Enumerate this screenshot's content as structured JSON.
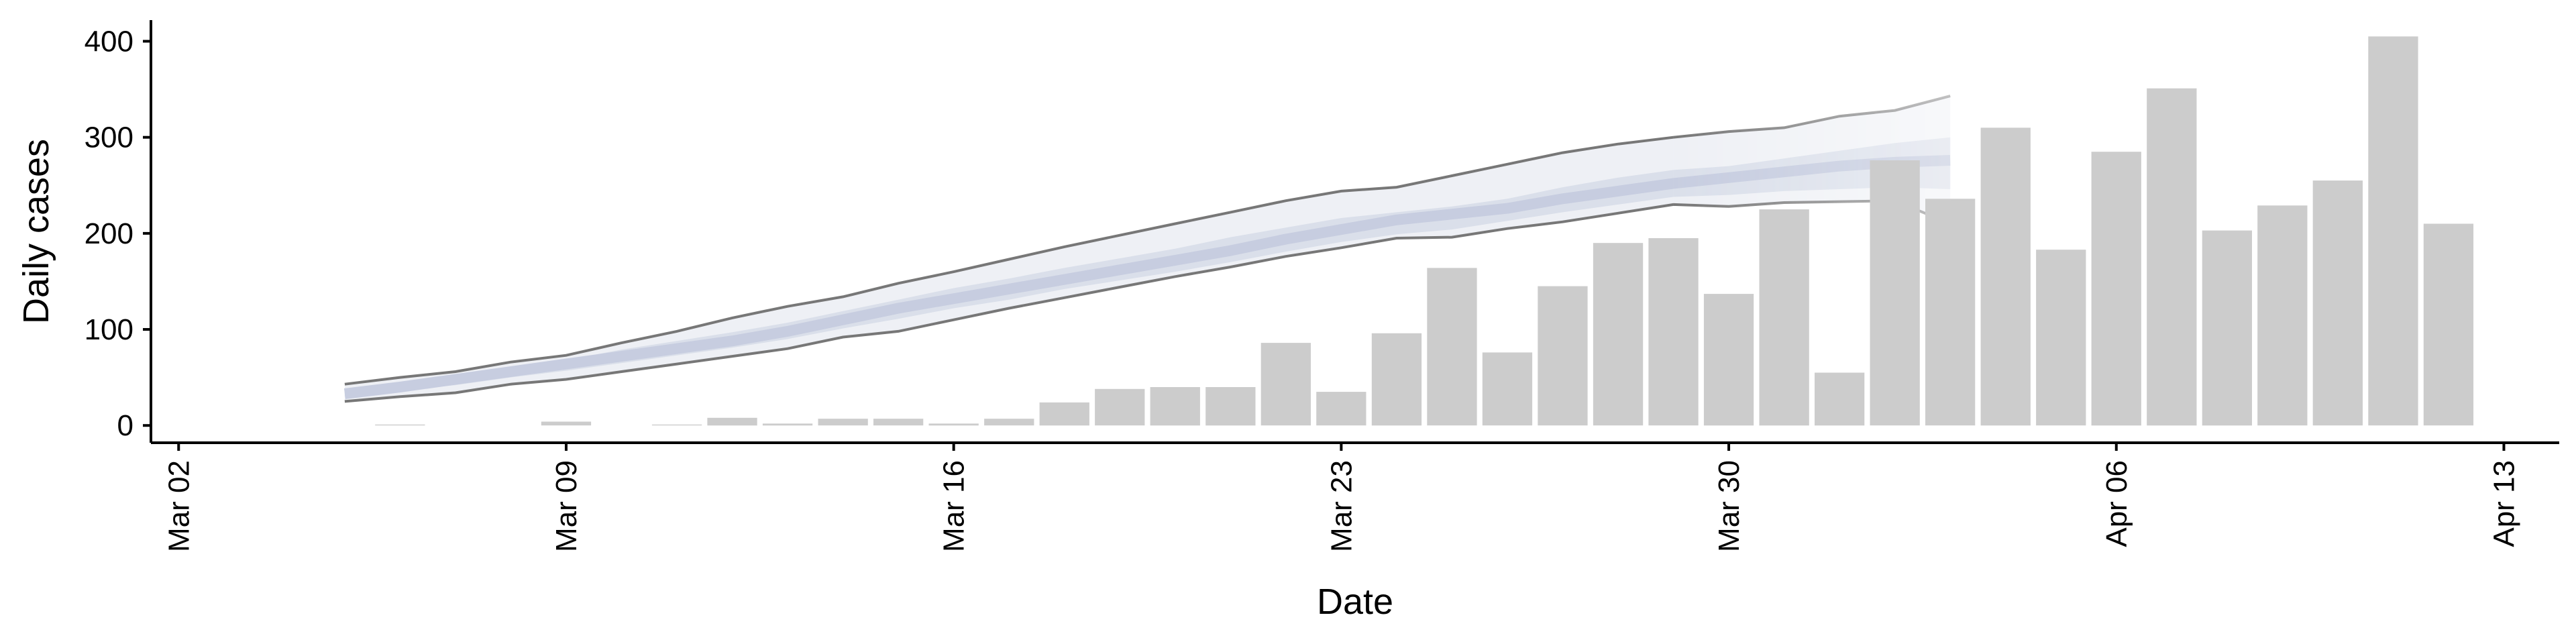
{
  "chart_data": {
    "type": "bar",
    "xlabel": "Date",
    "ylabel": "Daily cases",
    "x_ticks": [
      "Mar 02",
      "Mar 09",
      "Mar 16",
      "Mar 23",
      "Mar 30",
      "Apr 06",
      "Apr 13"
    ],
    "y_ticks": [
      "0",
      "100",
      "200",
      "300",
      "400"
    ],
    "xlim": [
      "2020-03-01.5",
      "2020-04-14"
    ],
    "ylim": [
      -18,
      422
    ],
    "grid": false,
    "colors": {
      "bars": "#cccccc",
      "outer_band": "#eef0f5",
      "inner_band": "#dadfea",
      "median": "#c7cde0",
      "outer_line": "#777777"
    },
    "bars": {
      "dates": [
        "2020-03-05",
        "2020-03-06",
        "2020-03-07",
        "2020-03-08",
        "2020-03-09",
        "2020-03-10",
        "2020-03-11",
        "2020-03-12",
        "2020-03-13",
        "2020-03-14",
        "2020-03-15",
        "2020-03-16",
        "2020-03-17",
        "2020-03-18",
        "2020-03-19",
        "2020-03-20",
        "2020-03-21",
        "2020-03-22",
        "2020-03-23",
        "2020-03-24",
        "2020-03-25",
        "2020-03-26",
        "2020-03-27",
        "2020-03-28",
        "2020-03-29",
        "2020-03-30",
        "2020-03-31",
        "2020-04-01",
        "2020-04-02",
        "2020-04-03",
        "2020-04-04",
        "2020-04-05",
        "2020-04-06",
        "2020-04-07",
        "2020-04-08",
        "2020-04-09",
        "2020-04-10",
        "2020-04-11",
        "2020-04-12"
      ],
      "values": [
        0,
        1,
        0,
        0,
        4,
        0,
        1,
        8,
        2,
        7,
        7,
        2,
        7,
        24,
        38,
        40,
        40,
        86,
        35,
        96,
        164,
        76,
        145,
        190,
        195,
        137,
        225,
        55,
        276,
        236,
        310,
        183,
        285,
        351,
        203,
        229,
        255,
        405,
        210
      ]
    },
    "forecast": {
      "dates": [
        "2020-03-05",
        "2020-03-06",
        "2020-03-07",
        "2020-03-08",
        "2020-03-09",
        "2020-03-10",
        "2020-03-11",
        "2020-03-12",
        "2020-03-13",
        "2020-03-14",
        "2020-03-15",
        "2020-03-16",
        "2020-03-17",
        "2020-03-18",
        "2020-03-19",
        "2020-03-20",
        "2020-03-21",
        "2020-03-22",
        "2020-03-23",
        "2020-03-24",
        "2020-03-25",
        "2020-03-26",
        "2020-03-27",
        "2020-03-28",
        "2020-03-29",
        "2020-03-30",
        "2020-03-31",
        "2020-04-01",
        "2020-04-02",
        "2020-04-03"
      ],
      "median": [
        33,
        40,
        48,
        56,
        64,
        72,
        80,
        88,
        98,
        110,
        122,
        132,
        142,
        152,
        162,
        172,
        182,
        194,
        204,
        214,
        220,
        226,
        236,
        244,
        252,
        258,
        264,
        270,
        274,
        276
      ],
      "outer_lower": [
        25,
        30,
        34,
        43,
        48,
        56,
        64,
        72,
        80,
        92,
        98,
        110,
        122,
        133,
        144,
        155,
        165,
        176,
        185,
        195,
        196,
        205,
        212,
        221,
        230,
        228,
        232,
        233,
        234,
        210
      ],
      "outer_upper": [
        43,
        50,
        56,
        66,
        73,
        86,
        98,
        112,
        124,
        134,
        148,
        160,
        173,
        186,
        198,
        210,
        222,
        234,
        244,
        248,
        260,
        272,
        284,
        293,
        300,
        306,
        310,
        322,
        328,
        343
      ],
      "inner_lower": [
        30,
        36,
        42,
        50,
        57,
        65,
        73,
        81,
        90,
        101,
        111,
        122,
        131,
        142,
        151,
        160,
        170,
        181,
        191,
        199,
        204,
        213,
        222,
        230,
        238,
        240,
        244,
        246,
        248,
        246
      ],
      "inner_upper": [
        36,
        43,
        51,
        61,
        68,
        79,
        88,
        97,
        107,
        119,
        131,
        143,
        153,
        164,
        174,
        184,
        196,
        206,
        216,
        222,
        228,
        236,
        248,
        258,
        266,
        270,
        278,
        286,
        294,
        300
      ]
    }
  }
}
